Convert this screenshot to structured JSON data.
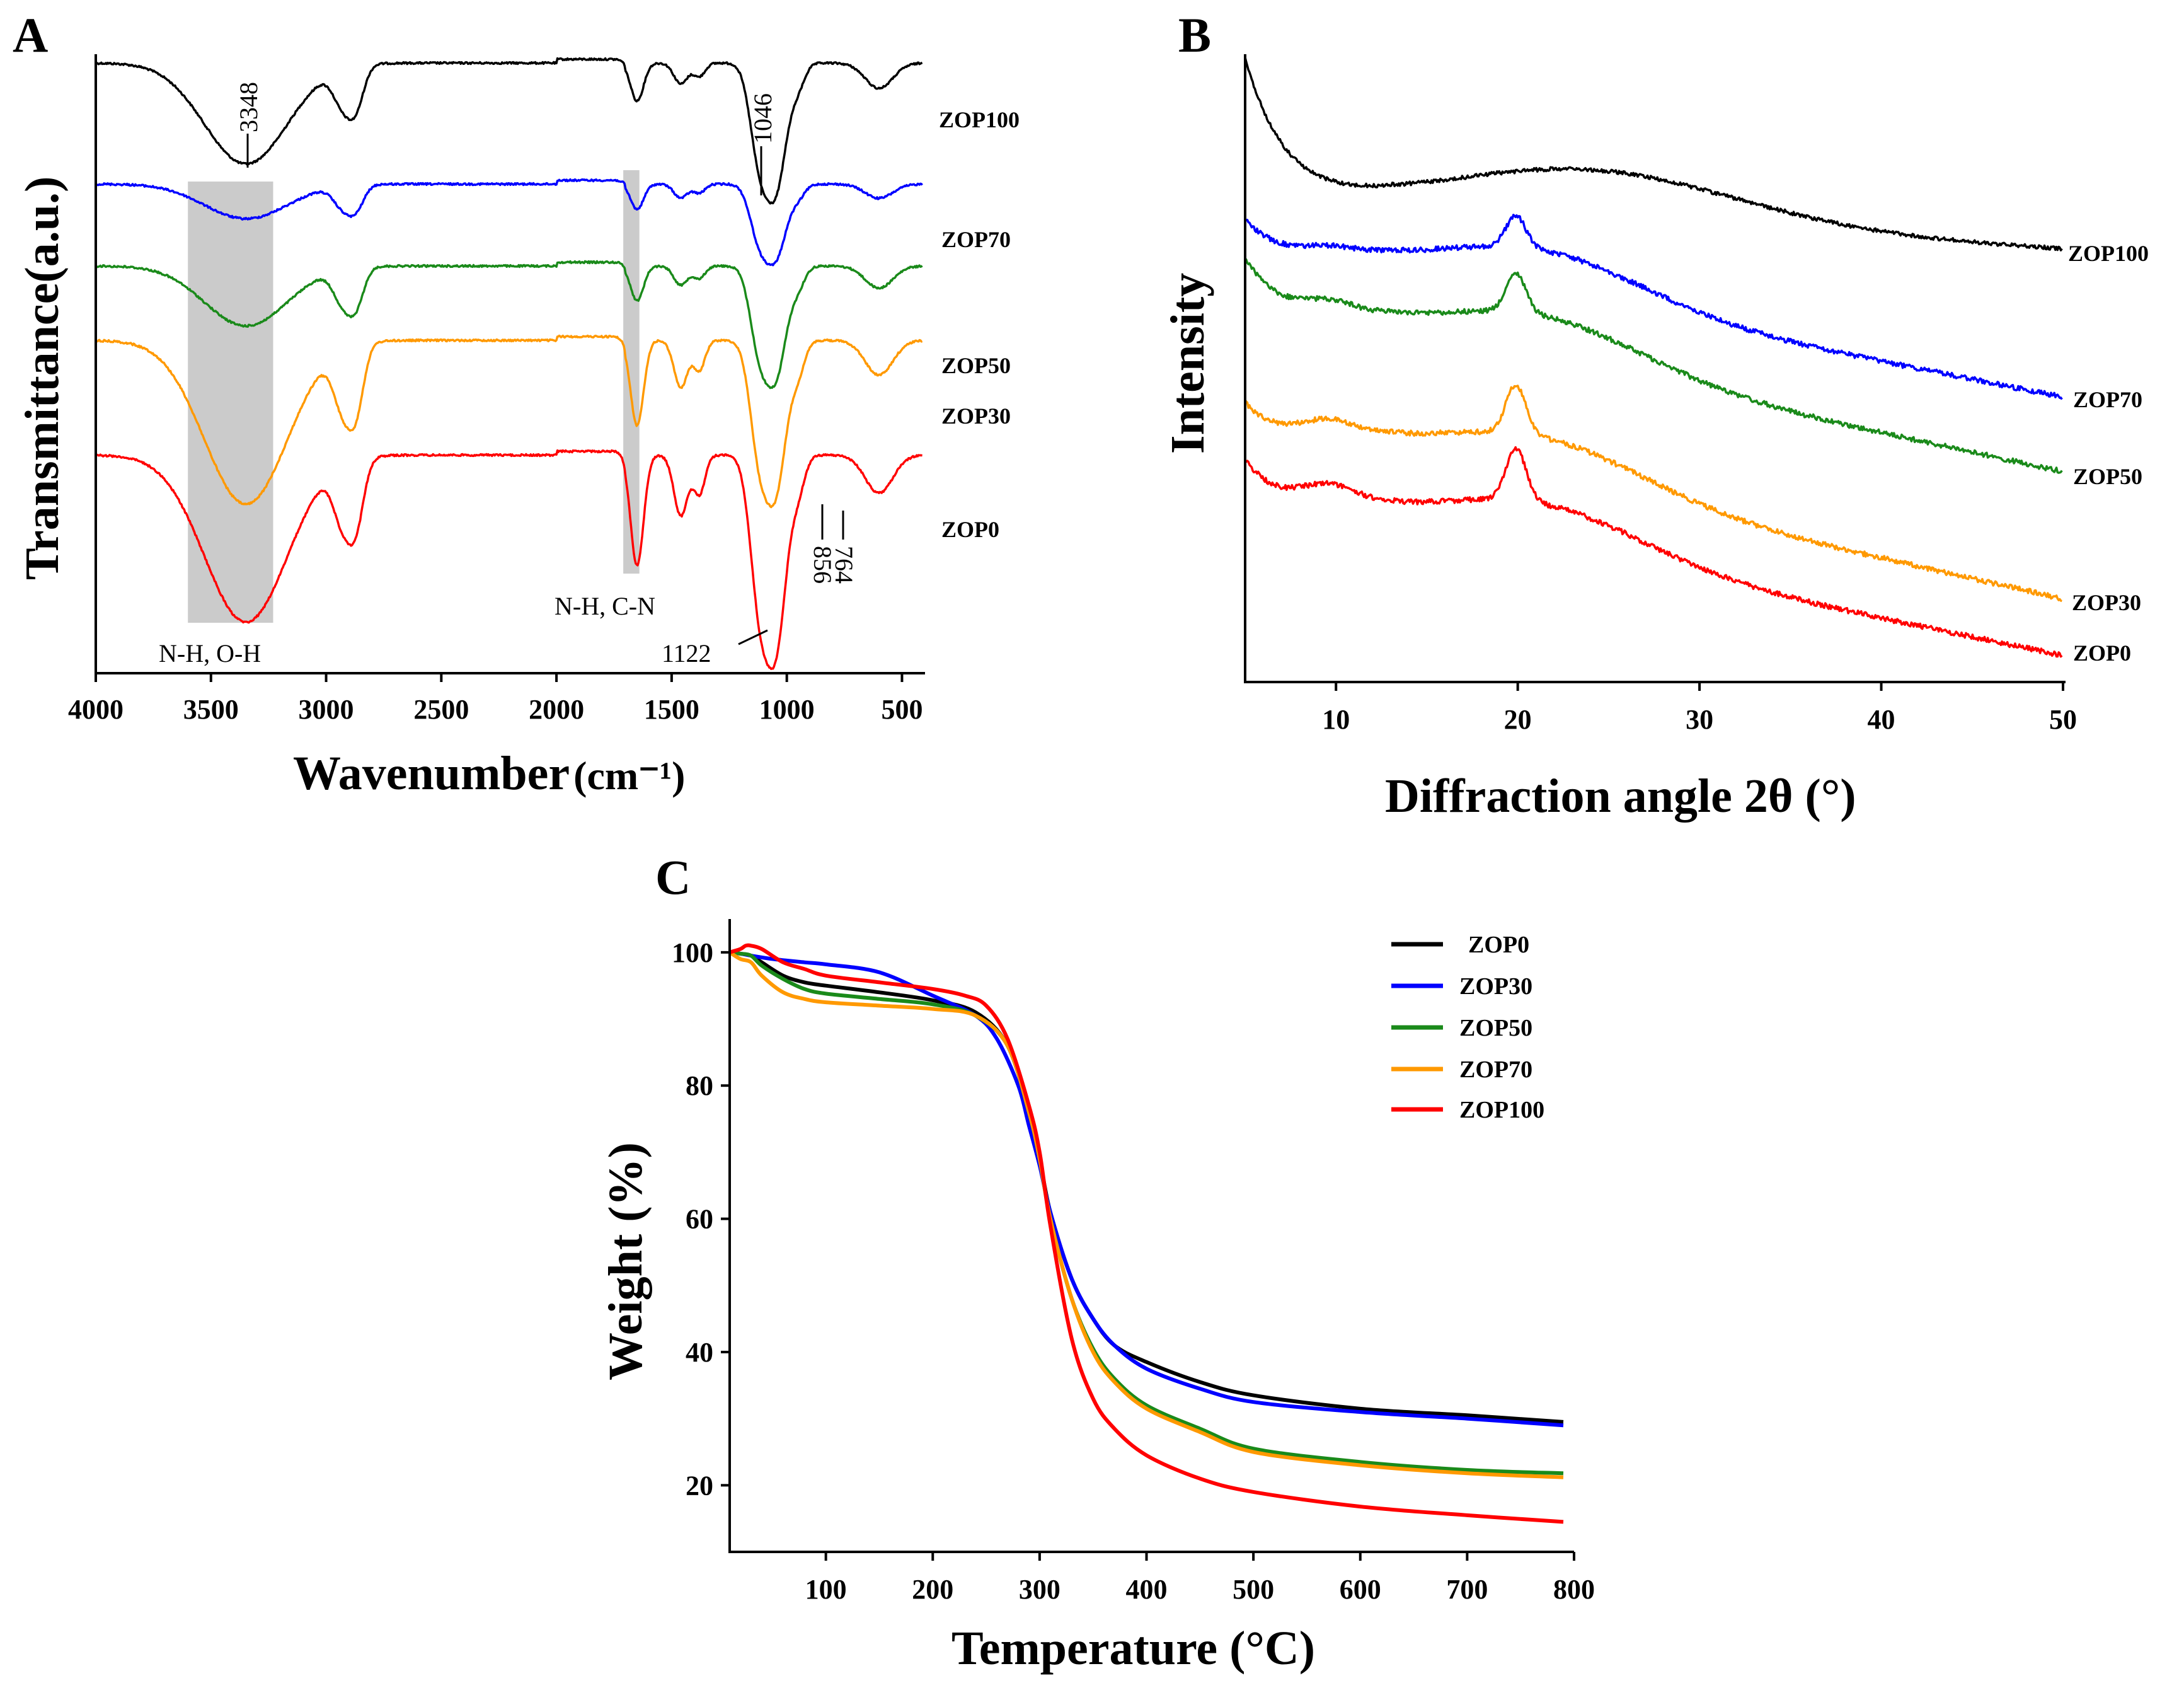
{
  "figure": {
    "panels": [
      "A",
      "B",
      "C"
    ]
  },
  "chart_data": [
    {
      "panel": "A",
      "type": "line",
      "title": "",
      "xlabel": "Wavenumber",
      "xlabel_unit": "(cm⁻¹)",
      "ylabel": "Transmittance(a.u.)",
      "xlim": [
        4000,
        400
      ],
      "x_ticks": [
        "4000",
        "3500",
        "3000",
        "2500",
        "2000",
        "1500",
        "1000",
        "500"
      ],
      "x_tick_values": [
        4000,
        3500,
        3000,
        2500,
        2000,
        1500,
        1000,
        500
      ],
      "series": [
        {
          "name": "ZOP100",
          "color": "#000000",
          "offset": 0.0
        },
        {
          "name": "ZOP70",
          "color": "#0000ff",
          "offset": 0.19
        },
        {
          "name": "ZOP50",
          "color": "#1a8a1a",
          "offset": 0.33
        },
        {
          "name": "ZOP30",
          "color": "#ff9900",
          "offset": 0.44
        },
        {
          "name": "ZOP0",
          "color": "#ff0000",
          "offset": 0.62
        }
      ],
      "bands": [
        {
          "label": "N-H, O-H",
          "from": 3600,
          "to": 3230
        },
        {
          "label": "N-H, C-N",
          "from": 1710,
          "to": 1640
        }
      ],
      "annotations": [
        "3348",
        "1046",
        "1122",
        "856",
        "764"
      ],
      "peak_wavenumbers": [
        3348,
        1046,
        1122,
        856,
        764
      ]
    },
    {
      "panel": "B",
      "type": "line",
      "title": "",
      "xlabel": "Diffraction angle 2θ (°)",
      "ylabel": "Intensity",
      "xlim": [
        5,
        50
      ],
      "x_ticks": [
        "10",
        "20",
        "30",
        "40",
        "50"
      ],
      "x_tick_values": [
        10,
        20,
        30,
        40,
        50
      ],
      "series": [
        {
          "name": "ZOP100",
          "color": "#000000"
        },
        {
          "name": "ZOP70",
          "color": "#0000ff"
        },
        {
          "name": "ZOP50",
          "color": "#1a8a1a"
        },
        {
          "name": "ZOP30",
          "color": "#ff9900"
        },
        {
          "name": "ZOP0",
          "color": "#ff0000"
        }
      ]
    },
    {
      "panel": "C",
      "type": "line",
      "title": "",
      "xlabel": "Temperature (°C)",
      "ylabel": "Weight (%)",
      "xlim": [
        10,
        800
      ],
      "ylim": [
        10,
        105
      ],
      "x_ticks": [
        "100",
        "200",
        "300",
        "400",
        "500",
        "600",
        "700",
        "800"
      ],
      "x_tick_values": [
        100,
        200,
        300,
        400,
        500,
        600,
        700,
        800
      ],
      "y_ticks": [
        "20",
        "40",
        "60",
        "80",
        "100"
      ],
      "y_tick_values": [
        20,
        40,
        60,
        80,
        100
      ],
      "legend_position": "top-right",
      "series": [
        {
          "name": "ZOP0",
          "color": "#000000",
          "x": [
            10,
            20,
            30,
            40,
            60,
            80,
            100,
            150,
            200,
            240,
            270,
            290,
            300,
            310,
            330,
            350,
            370,
            400,
            450,
            500,
            600,
            700,
            790
          ],
          "y": [
            100,
            99.8,
            99.5,
            98.5,
            96.5,
            95.5,
            95,
            94,
            92.8,
            91,
            86,
            76,
            69,
            61,
            51,
            45,
            41,
            38.5,
            35.5,
            33.5,
            31.5,
            30.5,
            29.5
          ]
        },
        {
          "name": "ZOP30",
          "color": "#0000ff",
          "x": [
            10,
            20,
            30,
            50,
            80,
            100,
            150,
            200,
            240,
            260,
            280,
            290,
            300,
            310,
            330,
            350,
            370,
            400,
            450,
            500,
            600,
            700,
            790
          ],
          "y": [
            100,
            99.8,
            99.5,
            99,
            98.5,
            98.2,
            97,
            93.5,
            90.5,
            87,
            80,
            74,
            68,
            61,
            51,
            45,
            41,
            37.5,
            34.5,
            32.5,
            31,
            30,
            29
          ]
        },
        {
          "name": "ZOP50",
          "color": "#1a8a1a",
          "x": [
            10,
            20,
            30,
            40,
            60,
            80,
            100,
            150,
            200,
            240,
            270,
            290,
            300,
            310,
            330,
            350,
            370,
            400,
            450,
            500,
            600,
            700,
            790
          ],
          "y": [
            100,
            99.8,
            99.5,
            98,
            96,
            94.5,
            93.8,
            93,
            92.2,
            90.5,
            86,
            76,
            69,
            60,
            48,
            40.5,
            36,
            32,
            28.5,
            25.5,
            23.5,
            22.3,
            21.8
          ]
        },
        {
          "name": "ZOP70",
          "color": "#ff9900",
          "x": [
            10,
            20,
            30,
            40,
            60,
            80,
            100,
            150,
            200,
            240,
            270,
            290,
            300,
            310,
            330,
            350,
            370,
            400,
            450,
            500,
            600,
            700,
            790
          ],
          "y": [
            100,
            99,
            98.5,
            96.5,
            94,
            93,
            92.5,
            92,
            91.5,
            90.5,
            86,
            76,
            69,
            60,
            48,
            40,
            35.5,
            31.5,
            28,
            25,
            23,
            21.8,
            21.2
          ]
        },
        {
          "name": "ZOP100",
          "color": "#ff0000",
          "x": [
            10,
            20,
            25,
            30,
            40,
            60,
            80,
            100,
            150,
            200,
            230,
            250,
            270,
            290,
            300,
            310,
            330,
            350,
            370,
            400,
            450,
            500,
            600,
            700,
            790
          ],
          "y": [
            100,
            100.5,
            101,
            101,
            100.5,
            98.5,
            97.5,
            96.5,
            95.5,
            94.5,
            93.5,
            92,
            87,
            77,
            70,
            59,
            42,
            33,
            28.5,
            24.5,
            21,
            19,
            16.8,
            15.5,
            14.5
          ]
        }
      ]
    }
  ]
}
